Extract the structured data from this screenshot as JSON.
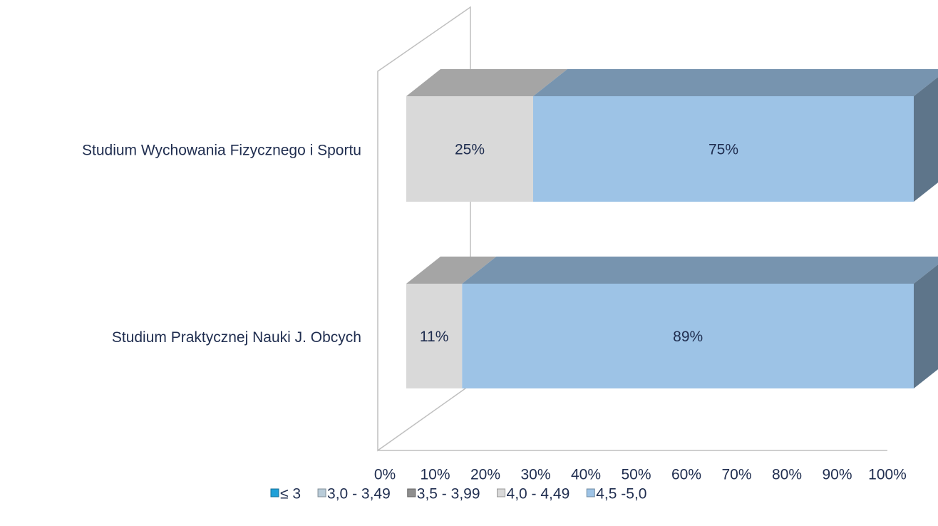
{
  "chart_data": {
    "type": "bar3d-stacked-horizontal",
    "categories": [
      "Studium Wychowania Fizycznego i Sportu",
      "Studium Praktycznej Nauki J. Obcych"
    ],
    "series": [
      {
        "name": "≤ 3",
        "color": "#1fa0d8",
        "values": [
          0,
          0
        ]
      },
      {
        "name": "3,0 - 3,49",
        "color": "#b9ccd9",
        "values": [
          0,
          0
        ]
      },
      {
        "name": "3,5 - 3,99",
        "color": "#8f8f8f",
        "values": [
          0,
          0
        ]
      },
      {
        "name": "4,0 - 4,49",
        "color": "#d9d9d9",
        "values": [
          25,
          11
        ],
        "value_labels": [
          "25%",
          "11%"
        ]
      },
      {
        "name": "4,5 -5,0",
        "color": "#9dc3e6",
        "values": [
          75,
          89
        ],
        "value_labels": [
          "75%",
          "89%"
        ]
      }
    ],
    "xlim": [
      0,
      100
    ],
    "xticks": [
      {
        "value": 0,
        "label": "0%"
      },
      {
        "value": 10,
        "label": "10%"
      },
      {
        "value": 20,
        "label": "20%"
      },
      {
        "value": 30,
        "label": "30%"
      },
      {
        "value": 40,
        "label": "40%"
      },
      {
        "value": 50,
        "label": "50%"
      },
      {
        "value": 60,
        "label": "60%"
      },
      {
        "value": 70,
        "label": "70%"
      },
      {
        "value": 80,
        "label": "80%"
      },
      {
        "value": 90,
        "label": "90%"
      },
      {
        "value": 100,
        "label": "100%"
      }
    ],
    "legend": "bottom"
  }
}
